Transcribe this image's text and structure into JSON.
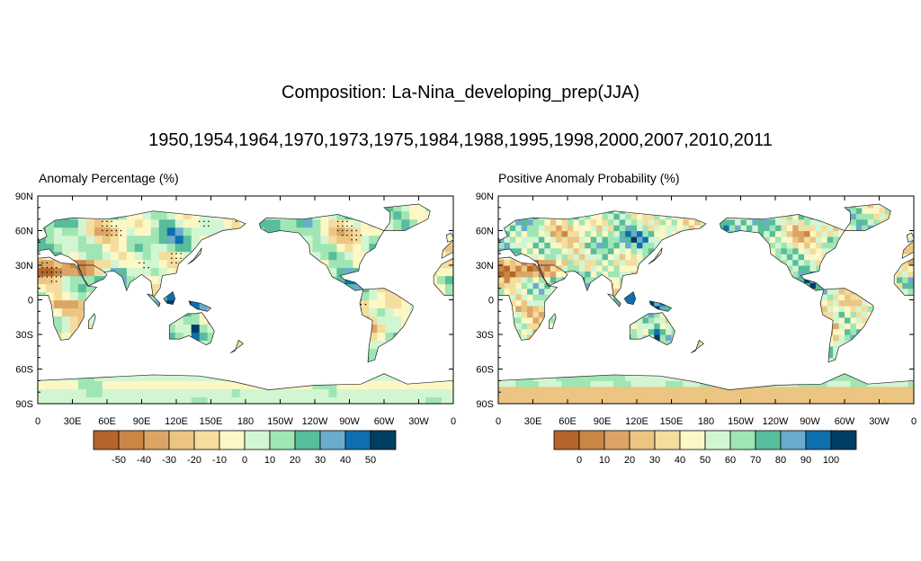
{
  "title": "Composition: La-Nina_developing_prep(JJA)",
  "years": "1950,1954,1964,1970,1973,1975,1984,1988,1995,1998,2000,2007,2010,2011",
  "lat_labels": [
    "90N",
    "60N",
    "30N",
    "0",
    "30S",
    "60S",
    "90S"
  ],
  "lon_labels": [
    "0",
    "30E",
    "60E",
    "90E",
    "120E",
    "150E",
    "180",
    "150W",
    "120W",
    "90W",
    "60W",
    "30W",
    "0"
  ],
  "palette": [
    "#b5652a",
    "#cb8646",
    "#dca566",
    "#ecc582",
    "#f4dd9d",
    "#fdf7c6",
    "#d2f6d2",
    "#9fe6b4",
    "#57bd9a",
    "#6aaccb",
    "#0f6fae",
    "#003e63"
  ],
  "panels": {
    "left": {
      "title": "Anomaly Percentage (%)",
      "colorbar_labels": [
        "-50",
        "-40",
        "-30",
        "-20",
        "-10",
        "0",
        "10",
        "20",
        "30",
        "40",
        "50"
      ]
    },
    "right": {
      "title": "Positive Anomaly Probability (%)",
      "colorbar_labels": [
        "0",
        "10",
        "20",
        "30",
        "40",
        "50",
        "60",
        "70",
        "80",
        "90",
        "100"
      ]
    }
  }
}
